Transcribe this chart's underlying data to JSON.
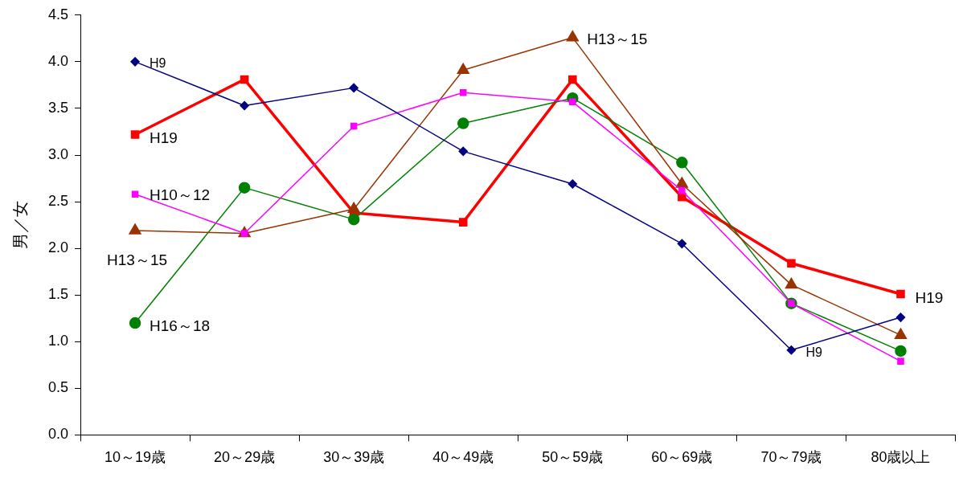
{
  "chart_data": {
    "type": "line",
    "ylabel": "男／女",
    "categories": [
      "10～19歳",
      "20～29歳",
      "30～39歳",
      "40～49歳",
      "50～59歳",
      "60～69歳",
      "70～79歳",
      "80歳以上"
    ],
    "ylim": [
      0,
      4.5
    ],
    "yticks": [
      {
        "value": 0,
        "label": "0.0"
      },
      {
        "value": 0.5,
        "label": "0.5"
      },
      {
        "value": 1,
        "label": "1.0"
      },
      {
        "value": 1.5,
        "label": "1.5"
      },
      {
        "value": 2,
        "label": "2.0"
      },
      {
        "value": 2.5,
        "label": "2.5"
      },
      {
        "value": 3,
        "label": "3.0"
      },
      {
        "value": 3.5,
        "label": "3.5"
      },
      {
        "value": 4,
        "label": "4.0"
      },
      {
        "value": 4.5,
        "label": "4.5"
      }
    ],
    "grid": false,
    "legend": false,
    "series": [
      {
        "color": "#000080",
        "marker": "diamond",
        "values": [
          4.0,
          3.53,
          3.72,
          3.04,
          2.69,
          2.05,
          0.91,
          1.26
        ]
      },
      {
        "color": "#ff00ff",
        "marker": "square",
        "values": [
          2.58,
          2.16,
          3.31,
          3.67,
          3.57,
          2.62,
          1.41,
          0.79
        ]
      },
      {
        "color": "#993300",
        "marker": "triangle",
        "values": [
          2.19,
          2.16,
          2.42,
          3.91,
          4.26,
          2.69,
          1.61,
          1.07
        ]
      },
      {
        "color": "#008000",
        "marker": "circle",
        "values": [
          1.2,
          2.65,
          2.31,
          3.34,
          3.61,
          2.92,
          1.41,
          0.9
        ]
      },
      {
        "color": "#ff0000",
        "marker": "square",
        "values": [
          3.22,
          3.81,
          2.38,
          2.28,
          3.81,
          2.55,
          1.84,
          1.51
        ]
      }
    ],
    "annotations": [
      {
        "text": "H9",
        "x": "10～19歳",
        "y": 4.0
      },
      {
        "text": "H19",
        "x": "10～19歳",
        "y": 3.22
      },
      {
        "text": "H10～12",
        "x": "10～19歳",
        "y": 2.58
      },
      {
        "text": "H13～15",
        "x": "10～19歳",
        "y": 2.19
      },
      {
        "text": "H16～18",
        "x": "10～19歳",
        "y": 1.2
      },
      {
        "text": "H13～15",
        "x": "50～59歳",
        "y": 4.26
      },
      {
        "text": "H9",
        "x": "70～79歳",
        "y": 0.91
      },
      {
        "text": "H19",
        "x": "80歳以上",
        "y": 1.51
      }
    ]
  }
}
